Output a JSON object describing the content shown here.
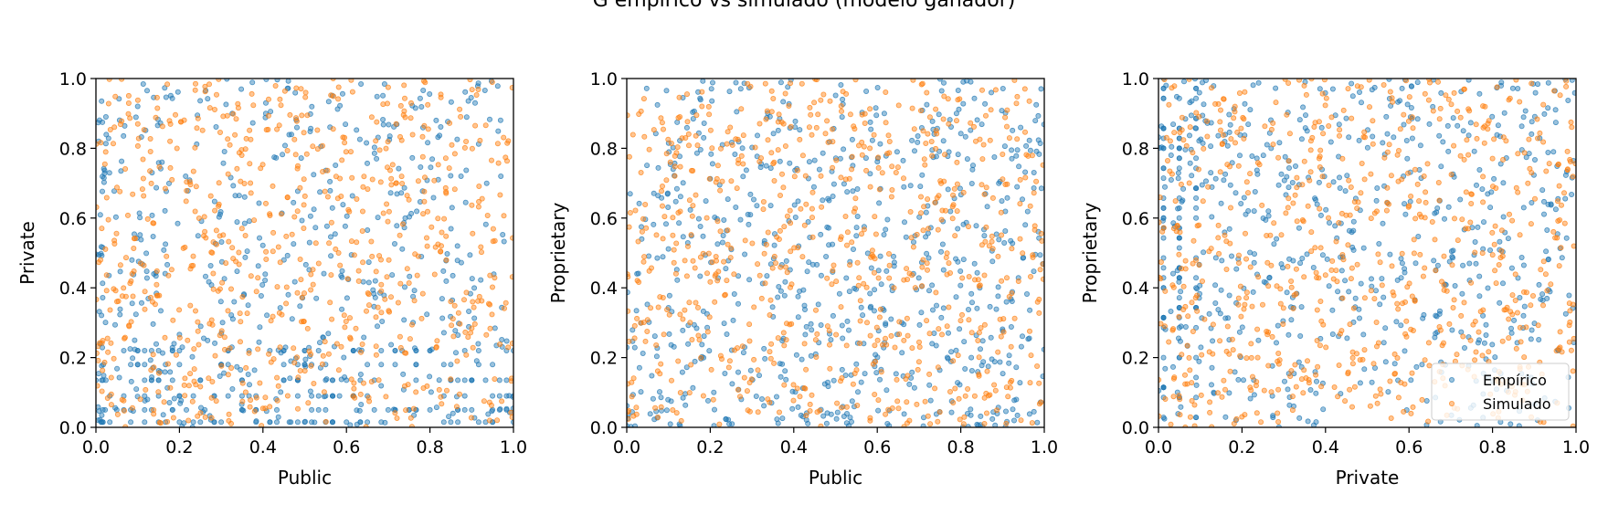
{
  "figure": {
    "suptitle": "G empírico vs simulado (modelo ganador)"
  },
  "colors": {
    "empirico": "#1f77b4",
    "simulado": "#ff7f0e"
  },
  "chart_data": [
    {
      "type": "scatter",
      "xlabel": "Public",
      "ylabel": "Private",
      "xlim": [
        0,
        1
      ],
      "ylim": [
        0,
        1
      ],
      "xticks": [
        "0.0",
        "0.2",
        "0.4",
        "0.6",
        "0.8",
        "1.0"
      ],
      "yticks": [
        "0.0",
        "0.2",
        "0.4",
        "0.6",
        "0.8",
        "1.0"
      ],
      "grid": false,
      "series": [
        {
          "name": "Empírico",
          "color": "#1f77b4",
          "seed": 11,
          "n": 700,
          "pattern": "public-private"
        },
        {
          "name": "Simulado",
          "color": "#ff7f0e",
          "seed": 12,
          "n": 700,
          "pattern": "uniform"
        }
      ],
      "legend": null
    },
    {
      "type": "scatter",
      "xlabel": "Public",
      "ylabel": "Proprietary",
      "xlim": [
        0,
        1
      ],
      "ylim": [
        0,
        1
      ],
      "xticks": [
        "0.0",
        "0.2",
        "0.4",
        "0.6",
        "0.8",
        "1.0"
      ],
      "yticks": [
        "0.0",
        "0.2",
        "0.4",
        "0.6",
        "0.8",
        "1.0"
      ],
      "grid": false,
      "series": [
        {
          "name": "Empírico",
          "color": "#1f77b4",
          "seed": 21,
          "n": 700,
          "pattern": "public-proprietary"
        },
        {
          "name": "Simulado",
          "color": "#ff7f0e",
          "seed": 22,
          "n": 700,
          "pattern": "uniform"
        }
      ],
      "legend": null
    },
    {
      "type": "scatter",
      "xlabel": "Private",
      "ylabel": "Proprietary",
      "xlim": [
        0,
        1
      ],
      "ylim": [
        0,
        1
      ],
      "xticks": [
        "0.0",
        "0.2",
        "0.4",
        "0.6",
        "0.8",
        "1.0"
      ],
      "yticks": [
        "0.0",
        "0.2",
        "0.4",
        "0.6",
        "0.8",
        "1.0"
      ],
      "grid": false,
      "series": [
        {
          "name": "Empírico",
          "color": "#1f77b4",
          "seed": 31,
          "n": 700,
          "pattern": "private-proprietary"
        },
        {
          "name": "Simulado",
          "color": "#ff7f0e",
          "seed": 32,
          "n": 700,
          "pattern": "uniform"
        }
      ],
      "legend": {
        "placement": "lower right",
        "entries": [
          "Empírico",
          "Simulado"
        ]
      }
    }
  ]
}
